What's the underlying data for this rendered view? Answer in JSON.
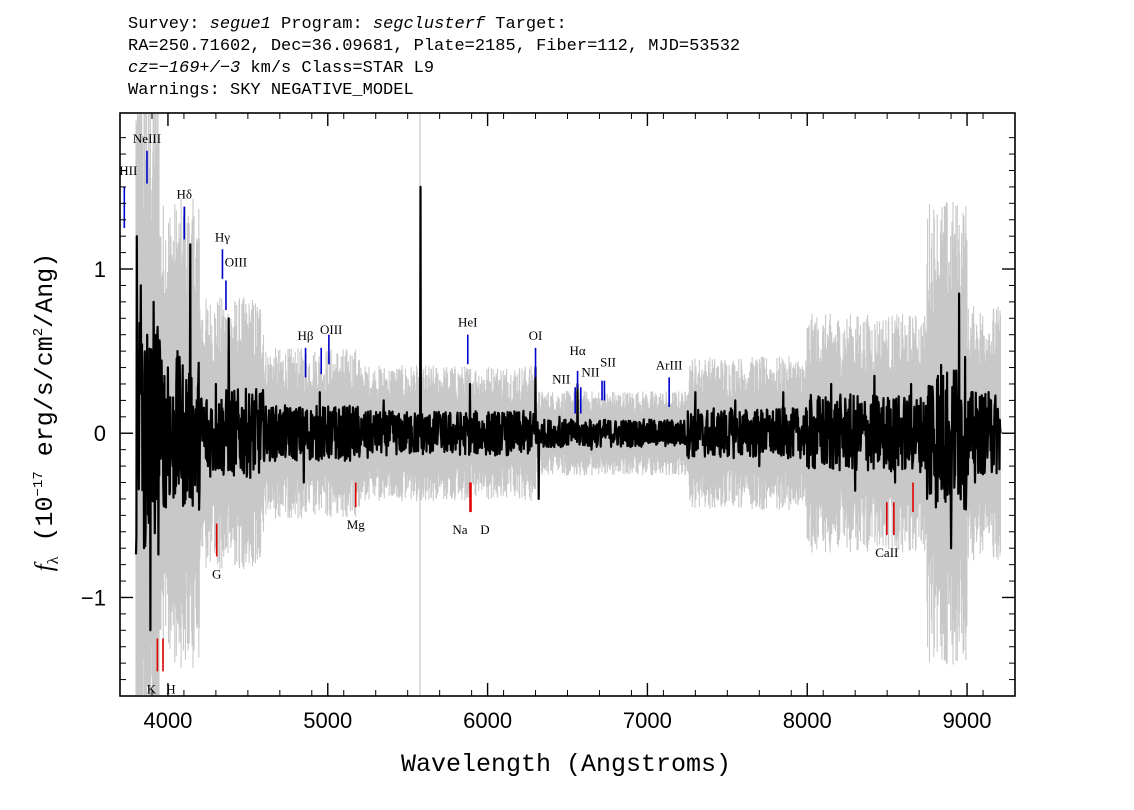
{
  "header": {
    "line1": {
      "survey_label": "Survey: ",
      "survey": "segue1",
      "program_label": " Program: ",
      "program": "segclusterf",
      "target_label": " Target:"
    },
    "line2": "RA=250.71602, Dec=36.09681, Plate=2185, Fiber=112, MJD=53532",
    "line3": {
      "cz": "cz=−169+/−3",
      "rest": " km/s Class=STAR L9"
    },
    "line4": "Warnings: SKY NEGATIVE_MODEL"
  },
  "chart_data": {
    "type": "line",
    "xlabel": "Wavelength (Angstroms)",
    "ylabel": "fλ (10⁻¹⁷ erg/s/cm²/Ang)",
    "xlim": [
      3700,
      9300
    ],
    "ylim": [
      -1.6,
      1.95
    ],
    "x_ticks": [
      4000,
      5000,
      6000,
      7000,
      8000,
      9000
    ],
    "x_tick_labels": [
      "4000",
      "5000",
      "6000",
      "7000",
      "8000",
      "9000"
    ],
    "y_ticks": [
      -1,
      0,
      1
    ],
    "y_tick_labels": [
      "−1",
      "0",
      "1"
    ],
    "x_range": [
      3800,
      9210
    ],
    "colors": {
      "flux": "#000000",
      "error": "#c8c8c8",
      "emission": "#0000cc",
      "absorption": "#dd0000"
    },
    "series": [],
    "flux_points": [
      [
        3805,
        1.2
      ],
      [
        3830,
        0.9
      ],
      [
        3850,
        -0.7
      ],
      [
        3870,
        0.6
      ],
      [
        3890,
        -1.2
      ],
      [
        3910,
        0.8
      ],
      [
        3930,
        -0.4
      ],
      [
        3950,
        0.5
      ],
      [
        3970,
        -0.3
      ],
      [
        4000,
        0.4
      ],
      [
        4030,
        -0.2
      ],
      [
        4060,
        0.5
      ],
      [
        4100,
        -0.3
      ],
      [
        4140,
        1.15
      ],
      [
        4180,
        0.2
      ],
      [
        4250,
        -0.2
      ],
      [
        4300,
        0.3
      ],
      [
        4380,
        0.7
      ],
      [
        4450,
        -0.15
      ],
      [
        4550,
        0.2
      ],
      [
        4650,
        -0.1
      ],
      [
        4750,
        0.15
      ],
      [
        4850,
        -0.3
      ],
      [
        4950,
        0.25
      ],
      [
        5050,
        -0.15
      ],
      [
        5150,
        0.1
      ],
      [
        5250,
        -0.15
      ],
      [
        5350,
        0.2
      ],
      [
        5450,
        -0.1
      ],
      [
        5520,
        0.1
      ],
      [
        5580,
        1.5
      ],
      [
        5600,
        -0.1
      ],
      [
        5700,
        0.1
      ],
      [
        5800,
        -0.1
      ],
      [
        5890,
        0.3
      ],
      [
        6000,
        -0.1
      ],
      [
        6100,
        0.1
      ],
      [
        6200,
        -0.1
      ],
      [
        6300,
        0.4
      ],
      [
        6320,
        -0.4
      ],
      [
        6450,
        0.1
      ],
      [
        6563,
        0.3
      ],
      [
        6650,
        -0.1
      ],
      [
        6750,
        0.05
      ],
      [
        6900,
        -0.05
      ],
      [
        7050,
        0.05
      ],
      [
        7200,
        -0.05
      ],
      [
        7300,
        0.25
      ],
      [
        7400,
        -0.1
      ],
      [
        7550,
        0.2
      ],
      [
        7700,
        -0.2
      ],
      [
        7850,
        0.25
      ],
      [
        8000,
        -0.2
      ],
      [
        8150,
        0.3
      ],
      [
        8300,
        -0.35
      ],
      [
        8420,
        0.35
      ],
      [
        8550,
        -0.3
      ],
      [
        8650,
        0.3
      ],
      [
        8750,
        -0.4
      ],
      [
        8850,
        0.35
      ],
      [
        8900,
        -0.7
      ],
      [
        8950,
        0.85
      ],
      [
        9050,
        -0.3
      ],
      [
        9150,
        0.2
      ],
      [
        9210,
        0.0
      ]
    ],
    "sky_line_x": 5577,
    "emission_lines": [
      {
        "label": "HII",
        "wave": 3727,
        "y1": 1.25,
        "y2": 1.5
      },
      {
        "label": "NeIII",
        "wave": 3869,
        "y1": 1.52,
        "y2": 1.72
      },
      {
        "label": "Hδ",
        "wave": 4102,
        "y1": 1.18,
        "y2": 1.38
      },
      {
        "label": "Hγ",
        "wave": 4341,
        "y1": 0.94,
        "y2": 1.12
      },
      {
        "label": "OIII",
        "wave": 4363,
        "y1": 0.75,
        "y2": 0.93
      },
      {
        "label": "Hβ",
        "wave": 4861,
        "y1": 0.34,
        "y2": 0.52
      },
      {
        "label": "OIII",
        "wave": 4959,
        "y1": 0.36,
        "y2": 0.52
      },
      {
        "label": "",
        "wave": 5007,
        "y1": 0.42,
        "y2": 0.6
      },
      {
        "label": "HeI",
        "wave": 5876,
        "y1": 0.42,
        "y2": 0.6
      },
      {
        "label": "OI",
        "wave": 6300,
        "y1": 0.34,
        "y2": 0.52
      },
      {
        "label": "NII",
        "wave": 6548,
        "y1": 0.12,
        "y2": 0.28
      },
      {
        "label": "Hα",
        "wave": 6563,
        "y1": 0.27,
        "y2": 0.38
      },
      {
        "label": "",
        "wave": 6583,
        "y1": 0.12,
        "y2": 0.28
      },
      {
        "label": "SII",
        "wave": 6716,
        "y1": 0.2,
        "y2": 0.32
      },
      {
        "label": "NII",
        "wave": 6731,
        "y1": 0.2,
        "y2": 0.32
      },
      {
        "label": "ArIII",
        "wave": 7136,
        "y1": 0.16,
        "y2": 0.34
      }
    ],
    "absorption_lines": [
      {
        "label": "K",
        "wave": 3934,
        "y1": -1.45,
        "y2": -1.25
      },
      {
        "label": "H",
        "wave": 3969,
        "y1": -1.45,
        "y2": -1.25
      },
      {
        "label": "G",
        "wave": 4305,
        "y1": -0.75,
        "y2": -0.55
      },
      {
        "label": "Mg",
        "wave": 5175,
        "y1": -0.45,
        "y2": -0.3
      },
      {
        "label": "Na",
        "wave": 5890,
        "y1": -0.48,
        "y2": -0.3
      },
      {
        "label": "D",
        "wave": 5896,
        "y1": -0.48,
        "y2": -0.3
      },
      {
        "label": "CaII",
        "wave": 8498,
        "y1": -0.62,
        "y2": -0.42
      },
      {
        "label": "",
        "wave": 8542,
        "y1": -0.62,
        "y2": -0.42
      },
      {
        "label": "",
        "wave": 8662,
        "y1": -0.48,
        "y2": -0.3
      }
    ]
  }
}
